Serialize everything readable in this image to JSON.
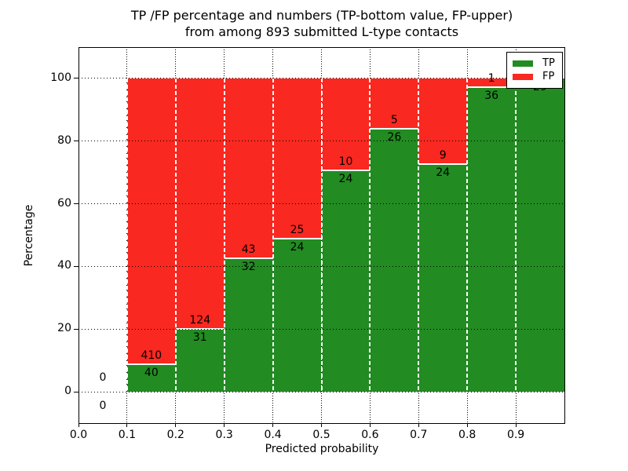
{
  "title": {
    "line1": "TP /FP percentage and numbers (TP-bottom value, FP-upper)",
    "line2": "from among 893 submitted L-type contacts"
  },
  "axes": {
    "xlabel": "Predicted probability",
    "ylabel": "Percentage"
  },
  "legend": {
    "position": "upper right",
    "items": [
      {
        "label": "TP",
        "color": "#228B22"
      },
      {
        "label": "FP",
        "color": "#F92820"
      }
    ]
  },
  "chart_data": {
    "type": "bar",
    "stacked": true,
    "normalized_to_percent": true,
    "title": "TP /FP percentage and numbers (TP-bottom value, FP-upper) from among 893 submitted L-type contacts",
    "xlabel": "Predicted probability",
    "ylabel": "Percentage",
    "total_contacts": 893,
    "bin_edges": [
      0.0,
      0.1,
      0.2,
      0.3,
      0.4,
      0.5,
      0.6,
      0.7,
      0.8,
      0.9,
      1.0
    ],
    "series": [
      {
        "name": "TP",
        "color": "#228B22",
        "values": [
          0,
          40,
          31,
          32,
          24,
          24,
          26,
          24,
          36,
          29
        ]
      },
      {
        "name": "FP",
        "color": "#F92820",
        "values": [
          0,
          410,
          124,
          43,
          25,
          10,
          5,
          9,
          1,
          0
        ]
      }
    ],
    "tp_percent_per_bin": [
      0,
      8.9,
      20.0,
      42.7,
      49.0,
      70.6,
      83.9,
      72.7,
      97.3,
      100.0
    ],
    "xticks": {
      "values": [
        0.0,
        0.1,
        0.2,
        0.3,
        0.4,
        0.5,
        0.6,
        0.7,
        0.8,
        0.9
      ],
      "labels": [
        "0.0",
        "0.1",
        "0.2",
        "0.3",
        "0.4",
        "0.5",
        "0.6",
        "0.7",
        "0.8",
        "0.9"
      ]
    },
    "yticks": {
      "values": [
        0,
        20,
        40,
        60,
        80,
        100
      ],
      "labels": [
        "0",
        "20",
        "40",
        "60",
        "80",
        "100"
      ]
    },
    "xlim": [
      0.0,
      1.0
    ],
    "ylim": [
      -10,
      110
    ],
    "grid": "dotted",
    "legend_position": "upper right"
  }
}
